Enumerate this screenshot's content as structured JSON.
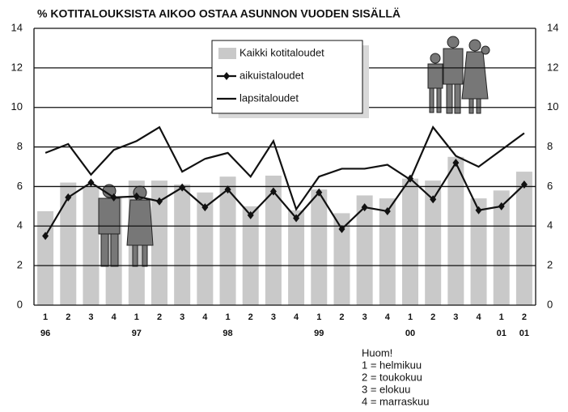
{
  "chart_data": {
    "type": "bar_line",
    "title": "% KOTITALOUKSISTA AIKOO OSTAA ASUNNON VUODEN SISÄLLÄ",
    "categories": [
      "1",
      "2",
      "3",
      "4",
      "1",
      "2",
      "3",
      "4",
      "1",
      "2",
      "3",
      "4",
      "1",
      "2",
      "3",
      "4",
      "1",
      "2",
      "3",
      "4",
      "1",
      "2"
    ],
    "years": [
      "96",
      null,
      null,
      null,
      "97",
      null,
      null,
      null,
      "98",
      null,
      null,
      null,
      "99",
      null,
      null,
      null,
      "00",
      null,
      null,
      null,
      "01",
      "01"
    ],
    "series": [
      {
        "name": "Kaikki kotitaloudet",
        "kind": "bar",
        "color": "#c9c9c9",
        "values": [
          4.75,
          6.2,
          6.0,
          5.5,
          6.3,
          6.3,
          6.1,
          5.7,
          6.5,
          5.0,
          6.55,
          4.8,
          5.85,
          4.65,
          5.55,
          5.4,
          6.4,
          6.3,
          7.5,
          5.4,
          5.8,
          6.75
        ]
      },
      {
        "name": "aikuistaloudet",
        "kind": "line-marker",
        "color": "#111111",
        "values": [
          3.5,
          5.45,
          6.2,
          5.45,
          5.5,
          5.25,
          5.95,
          4.95,
          5.85,
          4.55,
          5.75,
          4.4,
          5.7,
          3.85,
          4.95,
          4.75,
          6.4,
          5.35,
          7.2,
          4.8,
          5.0,
          6.1
        ]
      },
      {
        "name": "lapsitaloudet",
        "kind": "line",
        "color": "#111111",
        "values": [
          7.7,
          8.15,
          6.6,
          7.85,
          8.3,
          9.0,
          6.75,
          7.4,
          7.7,
          6.5,
          8.3,
          4.85,
          6.5,
          6.9,
          6.9,
          7.1,
          6.35,
          9.0,
          7.55,
          7.0,
          7.85,
          8.7
        ]
      }
    ],
    "ylim": [
      0,
      14
    ],
    "yticks": [
      0,
      2,
      4,
      6,
      8,
      10,
      12,
      14
    ],
    "grid": true,
    "note": [
      "Huom!",
      "1 = helmikuu",
      "2 = toukokuu",
      "3 = elokuu",
      "4 = marraskuu"
    ]
  }
}
